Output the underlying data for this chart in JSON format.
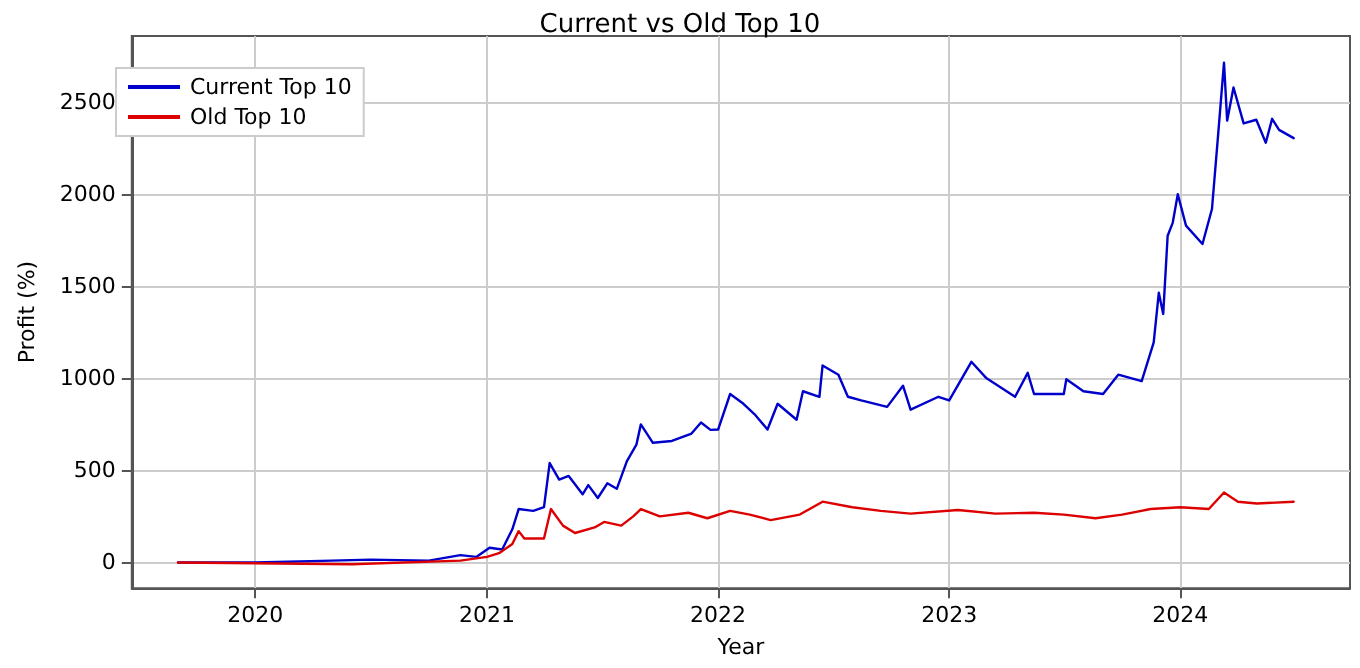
{
  "chart_data": {
    "type": "line",
    "title": "Current vs Old Top 10",
    "xlabel": "Year",
    "ylabel": "Profit (%)",
    "xlim": [
      "2019-06-20",
      "2024-09-25"
    ],
    "ylim": [
      -140,
      2860
    ],
    "xticks": [
      {
        "value": "2020-01-01",
        "label": "2020"
      },
      {
        "value": "2021-01-01",
        "label": "2021"
      },
      {
        "value": "2022-01-01",
        "label": "2022"
      },
      {
        "value": "2023-01-01",
        "label": "2023"
      },
      {
        "value": "2024-01-01",
        "label": "2024"
      }
    ],
    "yticks": [
      0,
      500,
      1000,
      1500,
      2000,
      2500
    ],
    "grid": true,
    "legend": "top left",
    "line_style": "solid",
    "marker": "none",
    "series": [
      {
        "name": "Current Top 10",
        "color": "#0000cc",
        "x": [
          "2019-09-01",
          "2020-01-01",
          "2020-05-01",
          "2020-07-01",
          "2020-10-01",
          "2020-11-20",
          "2020-12-15",
          "2021-01-05",
          "2021-01-25",
          "2021-02-10",
          "2021-02-20",
          "2021-03-15",
          "2021-04-01",
          "2021-04-10",
          "2021-04-25",
          "2021-05-10",
          "2021-06-01",
          "2021-06-10",
          "2021-06-25",
          "2021-07-10",
          "2021-07-25",
          "2021-08-10",
          "2021-08-25",
          "2021-09-01",
          "2021-09-20",
          "2021-10-20",
          "2021-11-20",
          "2021-12-05",
          "2021-12-20",
          "2022-01-01",
          "2022-01-20",
          "2022-02-10",
          "2022-03-01",
          "2022-03-20",
          "2022-04-05",
          "2022-05-05",
          "2022-05-15",
          "2022-06-10",
          "2022-06-15",
          "2022-07-10",
          "2022-07-25",
          "2022-08-15",
          "2022-09-25",
          "2022-10-20",
          "2022-11-01",
          "2022-12-15",
          "2023-01-01",
          "2023-02-05",
          "2023-03-01",
          "2023-04-15",
          "2023-05-05",
          "2023-05-15",
          "2023-07-01",
          "2023-07-05",
          "2023-08-01",
          "2023-09-01",
          "2023-09-25",
          "2023-11-01",
          "2023-11-20",
          "2023-11-28",
          "2023-12-05",
          "2023-12-12",
          "2023-12-20",
          "2023-12-28",
          "2024-01-10",
          "2024-02-05",
          "2024-02-20",
          "2024-03-01",
          "2024-03-10",
          "2024-03-15",
          "2024-03-25",
          "2024-04-10",
          "2024-04-30",
          "2024-05-15",
          "2024-05-25",
          "2024-06-05",
          "2024-06-28"
        ],
        "values": [
          0,
          0,
          10,
          15,
          10,
          40,
          30,
          80,
          70,
          180,
          290,
          280,
          300,
          540,
          450,
          470,
          370,
          420,
          350,
          430,
          400,
          550,
          640,
          750,
          650,
          660,
          700,
          760,
          720,
          722,
          915,
          862,
          800,
          722,
          862,
          775,
          930,
          900,
          1070,
          1020,
          900,
          880,
          845,
          960,
          830,
          900,
          880,
          1090,
          1000,
          900,
          1030,
          915,
          915,
          995,
          930,
          915,
          1020,
          985,
          1195,
          1465,
          1350,
          1775,
          1845,
          2000,
          1830,
          1730,
          1920,
          2335,
          2715,
          2400,
          2580,
          2385,
          2405,
          2280,
          2410,
          2350,
          2305
        ]
      },
      {
        "name": "Old Top 10",
        "color": "#dd0000",
        "x": [
          "2019-09-01",
          "2020-06-01",
          "2020-11-20",
          "2021-01-01",
          "2021-01-20",
          "2021-02-10",
          "2021-02-20",
          "2021-03-01",
          "2021-04-01",
          "2021-04-12",
          "2021-05-01",
          "2021-05-20",
          "2021-06-20",
          "2021-07-05",
          "2021-08-01",
          "2021-08-20",
          "2021-09-01",
          "2021-10-01",
          "2021-11-15",
          "2021-12-15",
          "2022-01-20",
          "2022-02-20",
          "2022-03-25",
          "2022-05-10",
          "2022-06-15",
          "2022-08-01",
          "2022-09-15",
          "2022-11-01",
          "2023-01-15",
          "2023-03-15",
          "2023-05-15",
          "2023-07-01",
          "2023-08-20",
          "2023-10-01",
          "2023-11-15",
          "2024-01-01",
          "2024-02-15",
          "2024-03-10",
          "2024-04-01",
          "2024-05-01",
          "2024-06-28"
        ],
        "values": [
          0,
          -10,
          10,
          30,
          50,
          100,
          170,
          130,
          130,
          290,
          200,
          160,
          190,
          220,
          200,
          250,
          290,
          250,
          270,
          240,
          280,
          260,
          230,
          260,
          330,
          300,
          280,
          265,
          285,
          265,
          270,
          260,
          240,
          260,
          290,
          300,
          290,
          380,
          330,
          320,
          330
        ]
      }
    ]
  }
}
